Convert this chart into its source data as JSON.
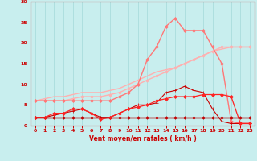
{
  "title": "",
  "xlabel": "Vent moyen/en rafales ( km/h )",
  "ylabel": "",
  "bg_color": "#c8eeee",
  "grid_color": "#aadddd",
  "xlim": [
    -0.5,
    23.5
  ],
  "ylim": [
    0,
    30
  ],
  "xticks": [
    0,
    1,
    2,
    3,
    4,
    5,
    6,
    7,
    8,
    9,
    10,
    11,
    12,
    13,
    14,
    15,
    16,
    17,
    18,
    19,
    20,
    21,
    22,
    23
  ],
  "yticks": [
    0,
    5,
    10,
    15,
    20,
    25,
    30
  ],
  "lines": [
    {
      "x": [
        0,
        1,
        2,
        3,
        4,
        5,
        6,
        7,
        8,
        9,
        10,
        11,
        12,
        13,
        14,
        15,
        16,
        17,
        18,
        19,
        20,
        21,
        22,
        23
      ],
      "y": [
        6,
        6.5,
        7,
        7,
        7.5,
        8,
        8,
        8,
        8.5,
        9,
        10,
        11,
        12,
        13,
        13.5,
        14,
        15,
        16,
        17,
        18,
        18.5,
        19,
        19,
        19
      ],
      "color": "#ffb0b0",
      "marker": null,
      "lw": 1.0
    },
    {
      "x": [
        0,
        1,
        2,
        3,
        4,
        5,
        6,
        7,
        8,
        9,
        10,
        11,
        12,
        13,
        14,
        15,
        16,
        17,
        18,
        19,
        20,
        21,
        22,
        23
      ],
      "y": [
        6,
        6,
        6,
        6,
        6.5,
        7,
        7,
        7,
        7.5,
        8,
        9,
        10,
        11,
        12,
        13,
        14,
        15,
        16,
        17,
        18,
        19,
        19,
        19,
        19
      ],
      "color": "#ffb0b0",
      "marker": "D",
      "ms": 1.8,
      "lw": 1.0
    },
    {
      "x": [
        0,
        1,
        2,
        3,
        4,
        5,
        6,
        7,
        8,
        9,
        10,
        11,
        12,
        13,
        14,
        15,
        16,
        17,
        18,
        19,
        20,
        21,
        22,
        23
      ],
      "y": [
        6,
        6,
        6,
        6,
        6,
        6,
        6,
        6,
        6,
        7,
        8,
        10,
        16,
        19,
        24,
        26,
        23,
        23,
        23,
        19,
        15,
        1,
        0.5,
        0.5
      ],
      "color": "#ff7777",
      "marker": "D",
      "ms": 2.0,
      "lw": 1.0
    },
    {
      "x": [
        0,
        1,
        2,
        3,
        4,
        5,
        6,
        7,
        8,
        9,
        10,
        11,
        12,
        13,
        14,
        15,
        16,
        17,
        18,
        19,
        20,
        21,
        22,
        23
      ],
      "y": [
        2,
        2,
        2,
        2,
        2,
        2,
        2,
        2,
        2,
        2,
        2,
        2,
        2,
        2,
        2,
        2,
        2,
        2,
        2,
        2,
        2,
        2,
        2,
        2
      ],
      "color": "#cc0000",
      "marker": "D",
      "ms": 1.8,
      "lw": 1.0
    },
    {
      "x": [
        0,
        1,
        2,
        3,
        4,
        5,
        6,
        7,
        8,
        9,
        10,
        11,
        12,
        13,
        14,
        15,
        16,
        17,
        18,
        19,
        20,
        21,
        22,
        23
      ],
      "y": [
        2,
        2,
        2.5,
        3,
        3.5,
        4,
        3,
        2,
        2,
        3,
        4,
        5,
        5,
        5.5,
        8,
        8.5,
        9.5,
        8.5,
        8,
        4,
        1,
        0.5,
        0.5,
        0.5
      ],
      "color": "#cc0000",
      "marker": "+",
      "ms": 3.5,
      "lw": 0.8
    },
    {
      "x": [
        0,
        1,
        2,
        3,
        4,
        5,
        6,
        7,
        8,
        9,
        10,
        11,
        12,
        13,
        14,
        15,
        16,
        17,
        18,
        19,
        20,
        21,
        22,
        23
      ],
      "y": [
        2,
        2,
        3,
        3,
        4,
        4,
        3,
        1.5,
        2,
        3,
        4,
        4.5,
        5,
        6,
        6.5,
        7,
        7,
        7,
        7.5,
        7.5,
        7.5,
        7,
        0.5,
        0.5
      ],
      "color": "#ff2222",
      "marker": "D",
      "ms": 2.0,
      "lw": 0.9
    },
    {
      "x": [
        0,
        1,
        2,
        3,
        4,
        5,
        6,
        7,
        8,
        9,
        10,
        11,
        12,
        13,
        14,
        15,
        16,
        17,
        18,
        19,
        20,
        21,
        22,
        23
      ],
      "y": [
        2,
        2,
        2,
        2,
        2,
        2,
        2,
        2,
        2,
        2,
        2,
        2,
        2,
        2,
        2,
        2,
        2,
        2,
        2,
        2,
        2,
        2,
        2,
        2
      ],
      "color": "#880000",
      "marker": null,
      "lw": 0.9
    }
  ]
}
